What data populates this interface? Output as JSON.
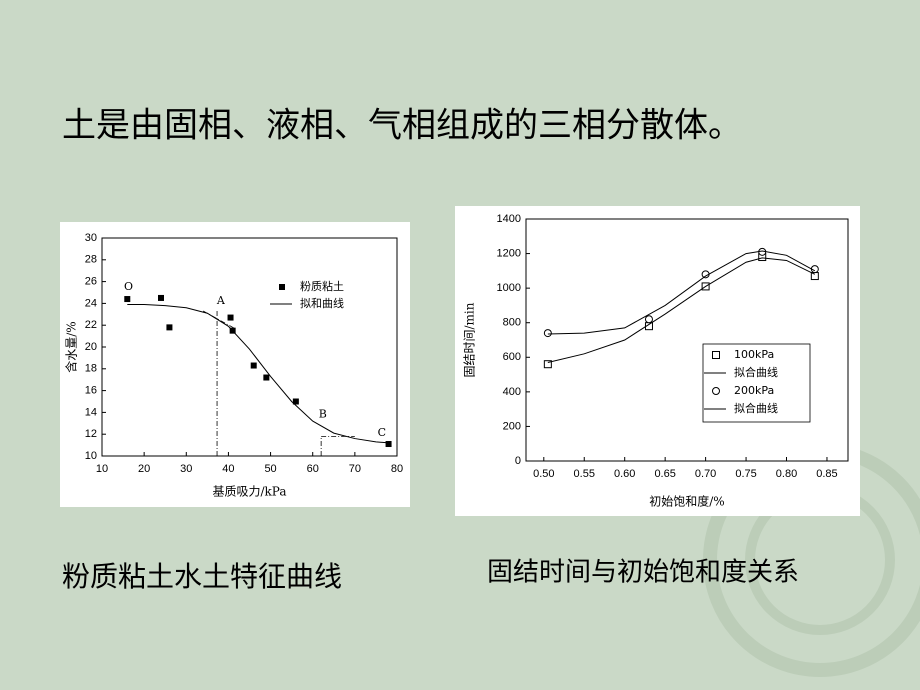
{
  "title": "土是由固相、液相、气相组成的三相分散体。",
  "chart_data": [
    {
      "type": "scatter",
      "caption": "粉质粘土水土特征曲线",
      "x_label": "基质吸力/kPa",
      "y_label": "含水量/%",
      "xlim": [
        10,
        80
      ],
      "xticks": [
        10,
        20,
        30,
        40,
        50,
        60,
        70,
        80
      ],
      "ylim": [
        10,
        30
      ],
      "yticks": [
        10,
        12,
        14,
        16,
        18,
        20,
        22,
        24,
        26,
        28,
        30
      ],
      "series": [
        {
          "name": "粉质粘土",
          "kind": "scatter",
          "marker": "square-filled",
          "color": "#000000",
          "x": [
            16,
            24,
            26,
            40.5,
            41,
            46,
            49,
            56,
            78
          ],
          "values": [
            24.4,
            24.5,
            21.8,
            22.7,
            21.5,
            18.3,
            17.2,
            15,
            11.1
          ]
        },
        {
          "name": "拟和曲线",
          "kind": "line",
          "color": "#000000",
          "x": [
            16,
            20,
            25,
            30,
            35,
            40,
            45,
            50,
            55,
            60,
            65,
            70,
            75,
            78
          ],
          "values": [
            23.9,
            23.9,
            23.8,
            23.6,
            23.1,
            21.9,
            19.8,
            17.3,
            15.0,
            13.2,
            12.1,
            11.6,
            11.3,
            11.2
          ]
        }
      ],
      "guides": [
        {
          "x": [
            37.3,
            37.3
          ],
          "y": [
            10,
            23.3
          ]
        },
        {
          "x": [
            34,
            41.5
          ],
          "y": [
            23.3,
            21.7
          ]
        },
        {
          "x": [
            62,
            62
          ],
          "y": [
            10,
            11.8
          ]
        },
        {
          "x": [
            62,
            70
          ],
          "y": [
            11.8,
            11.8
          ]
        }
      ],
      "annotations": [
        {
          "text": "O",
          "x": 16.3,
          "y": 25.5
        },
        {
          "text": "A",
          "x": 38.2,
          "y": 24.2
        },
        {
          "text": "B",
          "x": 62.4,
          "y": 13.8
        },
        {
          "text": "C",
          "x": 76.4,
          "y": 12.1
        }
      ]
    },
    {
      "type": "scatter",
      "caption": "固结时间与初始饱和度关系",
      "x_label": "初始饱和度/%",
      "y_label": "固结时间/min",
      "xlim": [
        0.478,
        0.876
      ],
      "xticks": [
        {
          "value": 0.5,
          "label": "0.50"
        },
        0.55,
        {
          "value": 0.6,
          "label": "0.60"
        },
        0.65,
        {
          "value": 0.7,
          "label": "0.70"
        },
        0.75,
        {
          "value": 0.8,
          "label": "0.80"
        },
        0.85
      ],
      "ylim": [
        0,
        1400
      ],
      "yticks": [
        0,
        200,
        400,
        600,
        800,
        1000,
        1200,
        1400
      ],
      "series": [
        {
          "name": "100kPa",
          "kind": "scatter",
          "marker": "square",
          "color": "#000000",
          "x": [
            0.505,
            0.63,
            0.7,
            0.77,
            0.835
          ],
          "values": [
            560,
            780,
            1010,
            1180,
            1070
          ]
        },
        {
          "name": "拟合曲线",
          "kind": "line",
          "color": "#000000",
          "x": [
            0.505,
            0.55,
            0.6,
            0.65,
            0.7,
            0.75,
            0.77,
            0.8,
            0.835
          ],
          "values": [
            570,
            620,
            700,
            850,
            1010,
            1150,
            1175,
            1160,
            1080
          ]
        },
        {
          "name": "200kPa",
          "kind": "scatter",
          "marker": "circle",
          "color": "#000000",
          "x": [
            0.505,
            0.63,
            0.7,
            0.77,
            0.835
          ],
          "values": [
            740,
            820,
            1080,
            1210,
            1110
          ]
        },
        {
          "name": "拟合曲线",
          "kind": "line",
          "color": "#000000",
          "x": [
            0.505,
            0.55,
            0.6,
            0.65,
            0.7,
            0.75,
            0.77,
            0.8,
            0.835
          ],
          "values": [
            735,
            740,
            770,
            900,
            1070,
            1200,
            1215,
            1190,
            1100
          ]
        }
      ]
    }
  ]
}
